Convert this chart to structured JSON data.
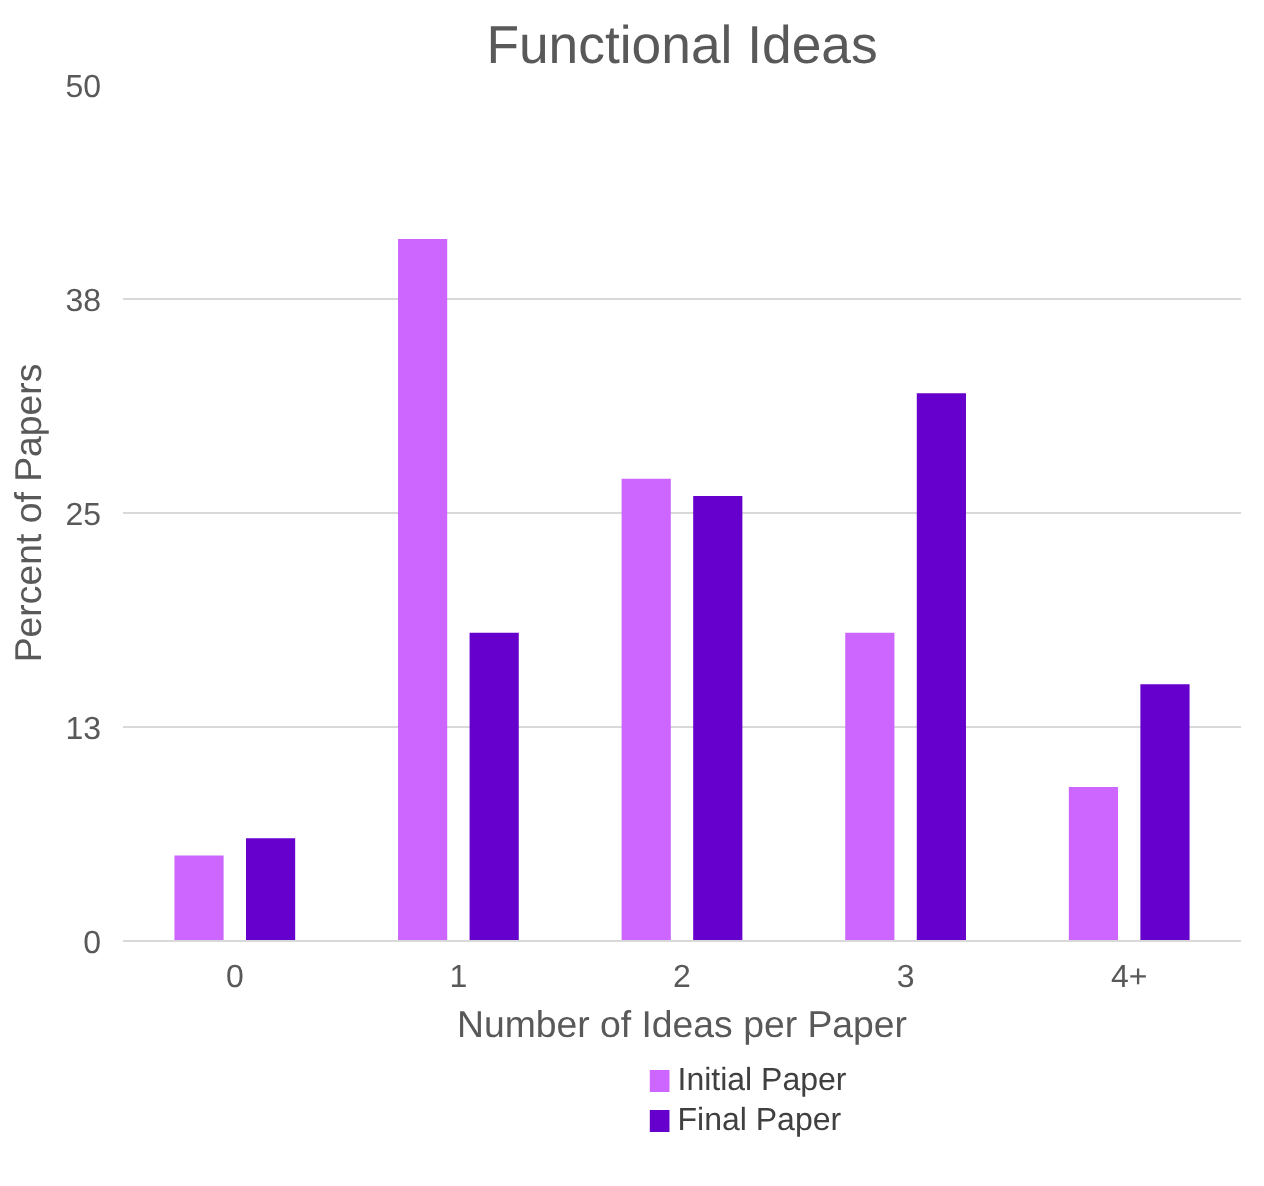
{
  "chart_data": {
    "type": "bar",
    "title": "Functional Ideas",
    "xlabel": "Number of Ideas per Paper",
    "ylabel": "Percent of Papers",
    "categories": [
      "0",
      "1",
      "2",
      "3",
      "4+"
    ],
    "series": [
      {
        "name": "Initial Paper",
        "color": "#cc66ff",
        "values": [
          5,
          41,
          27,
          18,
          9
        ]
      },
      {
        "name": "Final Paper",
        "color": "#6600cc",
        "values": [
          6,
          18,
          26,
          32,
          15
        ]
      }
    ],
    "ylim": [
      0,
      50
    ],
    "yticks": [
      0,
      {
        "value": 12.5,
        "label": "13"
      },
      25,
      {
        "value": 37.5,
        "label": "38"
      },
      50
    ],
    "grid": "y",
    "legend": "bottom"
  }
}
